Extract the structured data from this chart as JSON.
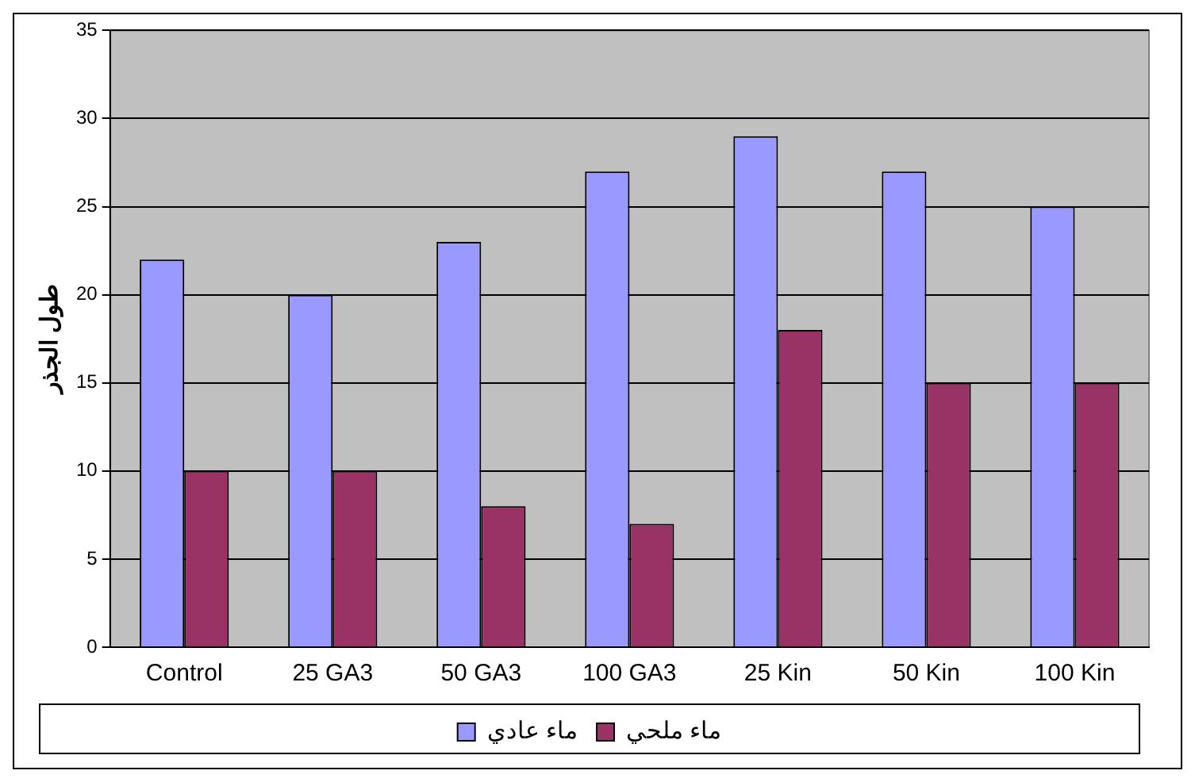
{
  "chart_data": {
    "type": "bar",
    "ylabel": "طول الجذر",
    "categories": [
      "Control",
      "25 GA3",
      "50 GA3",
      "100 GA3",
      "25 Kin",
      "50 Kin",
      "100 Kin"
    ],
    "series": [
      {
        "name": "ماء عادي",
        "color": "#9999ff",
        "values": [
          22,
          20,
          23,
          27,
          29,
          27,
          25
        ]
      },
      {
        "name": "ماء ملحي",
        "color": "#993366",
        "values": [
          10,
          10,
          8,
          7,
          18,
          15,
          15
        ]
      }
    ],
    "ylim": [
      0,
      35
    ],
    "yticks": [
      0,
      5,
      10,
      15,
      20,
      25,
      30,
      35
    ],
    "grid": "y",
    "legend": "bottom"
  }
}
